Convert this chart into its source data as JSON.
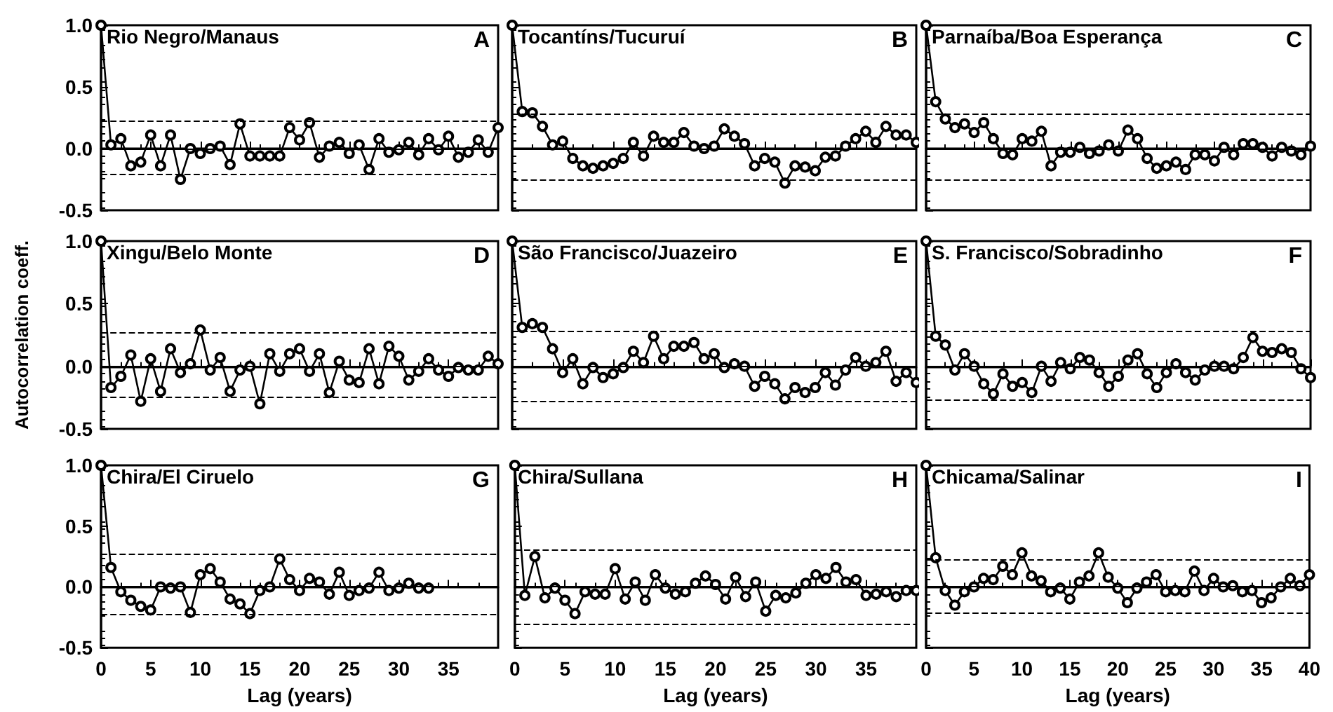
{
  "chart_data": [
    {
      "type": "line",
      "title": "Rio Negro/Manaus",
      "annotations": [
        "A"
      ],
      "tick_labels": "y",
      "color": "#000000",
      "marker": "circle",
      "xlim": [
        0,
        40
      ],
      "xticks": [
        {
          "value": 0,
          "label": null
        },
        {
          "value": 5,
          "label": null
        },
        {
          "value": 10,
          "label": null
        },
        {
          "value": 15,
          "label": null
        },
        {
          "value": 20,
          "label": null
        },
        {
          "value": 25,
          "label": null
        },
        {
          "value": 30,
          "label": null
        },
        {
          "value": 35,
          "label": null
        }
      ],
      "ylim": [
        -0.5,
        1.0
      ],
      "yticks": [
        {
          "value": -0.5,
          "label": "-0.5"
        },
        {
          "value": 0,
          "label": "0.0"
        },
        {
          "value": 0.5,
          "label": "0.5"
        },
        {
          "value": 1,
          "label": "1.0"
        }
      ],
      "ref_lines": [
        {
          "axis": "y",
          "value": 0,
          "line_style": "solid"
        },
        {
          "axis": "y",
          "value": 0.23,
          "line_style": "dashed"
        },
        {
          "axis": "y",
          "value": -0.21,
          "line_style": "dashed"
        }
      ],
      "x": [
        0,
        1,
        2,
        3,
        4,
        5,
        6,
        7,
        8,
        9,
        10,
        11,
        12,
        13,
        14,
        15,
        16,
        17,
        18,
        19,
        20,
        21,
        22,
        23,
        24,
        25,
        26,
        27,
        28,
        29,
        30,
        31,
        32,
        33,
        34,
        35,
        36,
        37,
        38,
        39,
        40
      ],
      "values": [
        1.0,
        0.03,
        0.08,
        -0.14,
        -0.11,
        0.11,
        -0.14,
        0.11,
        -0.25,
        0.0,
        -0.04,
        0.0,
        0.02,
        -0.13,
        0.2,
        -0.06,
        -0.06,
        -0.06,
        -0.06,
        0.17,
        0.07,
        0.21,
        -0.07,
        0.02,
        0.05,
        -0.04,
        0.03,
        -0.17,
        0.08,
        -0.03,
        -0.01,
        0.05,
        -0.05,
        0.08,
        -0.01,
        0.1,
        -0.07,
        -0.03,
        0.07,
        -0.03,
        0.17
      ]
    },
    {
      "type": "line",
      "title": "Tocantíns/Tucuruí",
      "annotations": [
        "B"
      ],
      "tick_labels": false,
      "color": "#000000",
      "marker": "circle",
      "xlim": [
        0,
        40
      ],
      "xticks": [
        {
          "value": 0,
          "label": null
        },
        {
          "value": 5,
          "label": null
        },
        {
          "value": 10,
          "label": null
        },
        {
          "value": 15,
          "label": null
        },
        {
          "value": 20,
          "label": null
        },
        {
          "value": 25,
          "label": null
        },
        {
          "value": 30,
          "label": null
        },
        {
          "value": 35,
          "label": null
        }
      ],
      "ylim": [
        -0.5,
        1.0
      ],
      "yticks": [
        {
          "value": -0.5,
          "label": null
        },
        {
          "value": 0,
          "label": null
        },
        {
          "value": 0.5,
          "label": null
        },
        {
          "value": 1,
          "label": null
        }
      ],
      "ref_lines": [
        {
          "axis": "y",
          "value": 0,
          "line_style": "solid"
        },
        {
          "axis": "y",
          "value": 0.28,
          "line_style": "dashed"
        },
        {
          "axis": "y",
          "value": -0.25,
          "line_style": "dashed"
        }
      ],
      "x": [
        0,
        1,
        2,
        3,
        4,
        5,
        6,
        7,
        8,
        9,
        10,
        11,
        12,
        13,
        14,
        15,
        16,
        17,
        18,
        19,
        20,
        21,
        22,
        23,
        24,
        25,
        26,
        27,
        28,
        29,
        30,
        31,
        32,
        33,
        34,
        35,
        36,
        37,
        38,
        39,
        40
      ],
      "values": [
        1.0,
        0.3,
        0.29,
        0.18,
        0.03,
        0.06,
        -0.08,
        -0.14,
        -0.16,
        -0.14,
        -0.12,
        -0.08,
        0.05,
        -0.06,
        0.1,
        0.05,
        0.05,
        0.13,
        0.02,
        0.0,
        0.02,
        0.16,
        0.1,
        0.04,
        -0.14,
        -0.08,
        -0.11,
        -0.28,
        -0.14,
        -0.15,
        -0.18,
        -0.07,
        -0.06,
        0.02,
        0.08,
        0.14,
        0.05,
        0.18,
        0.11,
        0.11,
        0.05
      ]
    },
    {
      "type": "line",
      "title": "Parnaíba/Boa Esperança",
      "annotations": [
        "C"
      ],
      "tick_labels": false,
      "color": "#000000",
      "marker": "circle",
      "xlim": [
        0,
        40
      ],
      "xticks": [
        {
          "value": 0,
          "label": null
        },
        {
          "value": 5,
          "label": null
        },
        {
          "value": 10,
          "label": null
        },
        {
          "value": 15,
          "label": null
        },
        {
          "value": 20,
          "label": null
        },
        {
          "value": 25,
          "label": null
        },
        {
          "value": 30,
          "label": null
        },
        {
          "value": 35,
          "label": null
        },
        {
          "value": 40,
          "label": null
        }
      ],
      "ylim": [
        -0.5,
        1.0
      ],
      "yticks": [
        {
          "value": -0.5,
          "label": null
        },
        {
          "value": 0,
          "label": null
        },
        {
          "value": 0.5,
          "label": null
        },
        {
          "value": 1,
          "label": null
        }
      ],
      "ref_lines": [
        {
          "axis": "y",
          "value": 0,
          "line_style": "solid"
        },
        {
          "axis": "y",
          "value": 0.28,
          "line_style": "dashed"
        },
        {
          "axis": "y",
          "value": -0.25,
          "line_style": "dashed"
        }
      ],
      "x": [
        0,
        1,
        2,
        3,
        4,
        5,
        6,
        7,
        8,
        9,
        10,
        11,
        12,
        13,
        14,
        15,
        16,
        17,
        18,
        19,
        20,
        21,
        22,
        23,
        24,
        25,
        26,
        27,
        28,
        29,
        30,
        31,
        32,
        33,
        34,
        35,
        36,
        37,
        38,
        39,
        40
      ],
      "values": [
        1.0,
        0.38,
        0.24,
        0.17,
        0.2,
        0.13,
        0.21,
        0.08,
        -0.04,
        -0.05,
        0.08,
        0.06,
        0.14,
        -0.14,
        -0.03,
        -0.03,
        0.01,
        -0.04,
        -0.02,
        0.03,
        -0.02,
        0.15,
        0.08,
        -0.08,
        -0.16,
        -0.14,
        -0.11,
        -0.17,
        -0.05,
        -0.05,
        -0.1,
        0.01,
        -0.05,
        0.04,
        0.04,
        0.01,
        -0.06,
        0.01,
        -0.02,
        -0.05,
        0.02
      ]
    },
    {
      "type": "line",
      "title": "Xingu/Belo Monte",
      "ylabel": "Autocorrelation coeff.",
      "annotations": [
        "D"
      ],
      "tick_labels": "y",
      "color": "#000000",
      "marker": "circle",
      "xlim": [
        0,
        40
      ],
      "xticks": [
        {
          "value": 0,
          "label": null
        },
        {
          "value": 5,
          "label": null
        },
        {
          "value": 10,
          "label": null
        },
        {
          "value": 15,
          "label": null
        },
        {
          "value": 20,
          "label": null
        },
        {
          "value": 25,
          "label": null
        },
        {
          "value": 30,
          "label": null
        },
        {
          "value": 35,
          "label": null
        }
      ],
      "ylim": [
        -0.5,
        1.0
      ],
      "yticks": [
        {
          "value": -0.5,
          "label": "-0.5"
        },
        {
          "value": 0,
          "label": "0.0"
        },
        {
          "value": 0.5,
          "label": "0.5"
        },
        {
          "value": 1,
          "label": "1.0"
        }
      ],
      "ref_lines": [
        {
          "axis": "y",
          "value": 0,
          "line_style": "solid"
        },
        {
          "axis": "y",
          "value": 0.27,
          "line_style": "dashed"
        },
        {
          "axis": "y",
          "value": -0.25,
          "line_style": "dashed"
        }
      ],
      "x": [
        0,
        1,
        2,
        3,
        4,
        5,
        6,
        7,
        8,
        9,
        10,
        11,
        12,
        13,
        14,
        15,
        16,
        17,
        18,
        19,
        20,
        21,
        22,
        23,
        24,
        25,
        26,
        27,
        28,
        29,
        30,
        31,
        32,
        33,
        34,
        35,
        36,
        37,
        38,
        39,
        40
      ],
      "values": [
        1.0,
        -0.17,
        -0.08,
        0.09,
        -0.28,
        0.06,
        -0.2,
        0.14,
        -0.05,
        0.02,
        0.29,
        -0.03,
        0.07,
        -0.2,
        -0.03,
        0.0,
        -0.3,
        0.1,
        -0.04,
        0.1,
        0.14,
        -0.04,
        0.1,
        -0.21,
        0.04,
        -0.11,
        -0.13,
        0.14,
        -0.14,
        0.16,
        0.08,
        -0.11,
        -0.04,
        0.06,
        -0.03,
        -0.08,
        -0.01,
        -0.03,
        -0.03,
        0.08,
        0.02
      ]
    },
    {
      "type": "line",
      "title": "São Francisco/Juazeiro",
      "annotations": [
        "E"
      ],
      "tick_labels": false,
      "color": "#000000",
      "marker": "circle",
      "xlim": [
        0,
        40
      ],
      "xticks": [
        {
          "value": 0,
          "label": null
        },
        {
          "value": 5,
          "label": null
        },
        {
          "value": 10,
          "label": null
        },
        {
          "value": 15,
          "label": null
        },
        {
          "value": 20,
          "label": null
        },
        {
          "value": 25,
          "label": null
        },
        {
          "value": 30,
          "label": null
        },
        {
          "value": 35,
          "label": null
        }
      ],
      "ylim": [
        -0.5,
        1.0
      ],
      "yticks": [
        {
          "value": -0.5,
          "label": null
        },
        {
          "value": 0,
          "label": null
        },
        {
          "value": 0.5,
          "label": null
        },
        {
          "value": 1,
          "label": null
        }
      ],
      "ref_lines": [
        {
          "axis": "y",
          "value": 0,
          "line_style": "solid"
        },
        {
          "axis": "y",
          "value": 0.28,
          "line_style": "dashed"
        },
        {
          "axis": "y",
          "value": -0.28,
          "line_style": "dashed"
        }
      ],
      "x": [
        0,
        1,
        2,
        3,
        4,
        5,
        6,
        7,
        8,
        9,
        10,
        11,
        12,
        13,
        14,
        15,
        16,
        17,
        18,
        19,
        20,
        21,
        22,
        23,
        24,
        25,
        26,
        27,
        28,
        29,
        30,
        31,
        32,
        33,
        34,
        35,
        36,
        37,
        38,
        39,
        40
      ],
      "values": [
        1.0,
        0.31,
        0.34,
        0.31,
        0.14,
        -0.05,
        0.06,
        -0.14,
        -0.01,
        -0.09,
        -0.06,
        -0.01,
        0.12,
        0.03,
        0.24,
        0.06,
        0.16,
        0.16,
        0.19,
        0.06,
        0.1,
        -0.01,
        0.02,
        0.0,
        -0.16,
        -0.08,
        -0.14,
        -0.26,
        -0.17,
        -0.21,
        -0.17,
        -0.05,
        -0.15,
        -0.03,
        0.07,
        0.0,
        0.03,
        0.12,
        -0.12,
        -0.05,
        -0.13
      ]
    },
    {
      "type": "line",
      "title": "S. Francisco/Sobradinho",
      "annotations": [
        "F"
      ],
      "tick_labels": false,
      "color": "#000000",
      "marker": "circle",
      "xlim": [
        0,
        40
      ],
      "xticks": [
        {
          "value": 0,
          "label": null
        },
        {
          "value": 5,
          "label": null
        },
        {
          "value": 10,
          "label": null
        },
        {
          "value": 15,
          "label": null
        },
        {
          "value": 20,
          "label": null
        },
        {
          "value": 25,
          "label": null
        },
        {
          "value": 30,
          "label": null
        },
        {
          "value": 35,
          "label": null
        },
        {
          "value": 40,
          "label": null
        }
      ],
      "ylim": [
        -0.5,
        1.0
      ],
      "yticks": [
        {
          "value": -0.5,
          "label": null
        },
        {
          "value": 0,
          "label": null
        },
        {
          "value": 0.5,
          "label": null
        },
        {
          "value": 1,
          "label": null
        }
      ],
      "ref_lines": [
        {
          "axis": "y",
          "value": 0,
          "line_style": "solid"
        },
        {
          "axis": "y",
          "value": 0.28,
          "line_style": "dashed"
        },
        {
          "axis": "y",
          "value": -0.27,
          "line_style": "dashed"
        }
      ],
      "x": [
        0,
        1,
        2,
        3,
        4,
        5,
        6,
        7,
        8,
        9,
        10,
        11,
        12,
        13,
        14,
        15,
        16,
        17,
        18,
        19,
        20,
        21,
        22,
        23,
        24,
        25,
        26,
        27,
        28,
        29,
        30,
        31,
        32,
        33,
        34,
        35,
        36,
        37,
        38,
        39,
        40
      ],
      "values": [
        1.0,
        0.24,
        0.17,
        -0.03,
        0.1,
        0.0,
        -0.14,
        -0.22,
        -0.06,
        -0.16,
        -0.13,
        -0.21,
        0.0,
        -0.12,
        0.03,
        -0.02,
        0.07,
        0.05,
        -0.05,
        -0.16,
        -0.08,
        0.05,
        0.1,
        -0.06,
        -0.17,
        -0.05,
        0.02,
        -0.05,
        -0.11,
        -0.03,
        0.0,
        0.0,
        -0.02,
        0.07,
        0.23,
        0.12,
        0.11,
        0.14,
        0.11,
        -0.02,
        -0.09
      ]
    },
    {
      "type": "line",
      "title": "Chira/El Ciruelo",
      "xlabel": "Lag (years)",
      "annotations": [
        "G"
      ],
      "color": "#000000",
      "marker": "circle",
      "xlim": [
        0,
        40
      ],
      "xticks": [
        0,
        5,
        10,
        15,
        20,
        25,
        30,
        35
      ],
      "ylim": [
        -0.5,
        1.0
      ],
      "yticks": [
        {
          "value": -0.5,
          "label": "-0.5"
        },
        {
          "value": 0,
          "label": "0.0"
        },
        {
          "value": 0.5,
          "label": "0.5"
        },
        {
          "value": 1,
          "label": "1.0"
        }
      ],
      "ref_lines": [
        {
          "axis": "y",
          "value": 0,
          "line_style": "solid"
        },
        {
          "axis": "y",
          "value": 0.27,
          "line_style": "dashed"
        },
        {
          "axis": "y",
          "value": -0.22,
          "line_style": "dashed"
        }
      ],
      "x": [
        0,
        1,
        2,
        3,
        4,
        5,
        6,
        7,
        8,
        9,
        10,
        11,
        12,
        13,
        14,
        15,
        16,
        17,
        18,
        19,
        20,
        21,
        22,
        23,
        24,
        25,
        26,
        27,
        28,
        29,
        30,
        31,
        32,
        33
      ],
      "values": [
        1.0,
        0.16,
        -0.04,
        -0.11,
        -0.16,
        -0.19,
        0.0,
        -0.01,
        0.0,
        -0.21,
        0.1,
        0.15,
        0.04,
        -0.1,
        -0.14,
        -0.22,
        -0.03,
        0.0,
        0.23,
        0.06,
        -0.03,
        0.07,
        0.04,
        -0.06,
        0.12,
        -0.07,
        -0.03,
        -0.01,
        0.12,
        -0.03,
        -0.01,
        0.03,
        -0.01,
        -0.01
      ]
    },
    {
      "type": "line",
      "title": "Chira/Sullana",
      "xlabel": "Lag (years)",
      "annotations": [
        "H"
      ],
      "tick_labels": "x",
      "color": "#000000",
      "marker": "circle",
      "xlim": [
        0,
        40
      ],
      "xticks": [
        0,
        5,
        10,
        15,
        20,
        25,
        30,
        35
      ],
      "ylim": [
        -0.5,
        1.0
      ],
      "yticks": [
        {
          "value": -0.5,
          "label": null
        },
        {
          "value": 0,
          "label": null
        },
        {
          "value": 0.5,
          "label": null
        },
        {
          "value": 1,
          "label": null
        }
      ],
      "ref_lines": [
        {
          "axis": "y",
          "value": 0,
          "line_style": "solid"
        },
        {
          "axis": "y",
          "value": 0.3,
          "line_style": "dashed"
        },
        {
          "axis": "y",
          "value": -0.3,
          "line_style": "dashed"
        }
      ],
      "x": [
        0,
        1,
        2,
        3,
        4,
        5,
        6,
        7,
        8,
        9,
        10,
        11,
        12,
        13,
        14,
        15,
        16,
        17,
        18,
        19,
        20,
        21,
        22,
        23,
        24,
        25,
        26,
        27,
        28,
        29,
        30,
        31,
        32,
        33,
        34,
        35,
        36,
        37,
        38,
        39,
        40
      ],
      "values": [
        1.0,
        -0.07,
        0.25,
        -0.09,
        -0.01,
        -0.11,
        -0.22,
        -0.04,
        -0.06,
        -0.06,
        0.15,
        -0.1,
        0.04,
        -0.11,
        0.1,
        -0.01,
        -0.06,
        -0.04,
        0.03,
        0.09,
        0.02,
        -0.1,
        0.08,
        -0.08,
        0.04,
        -0.2,
        -0.07,
        -0.09,
        -0.05,
        0.03,
        0.1,
        0.07,
        0.16,
        0.04,
        0.06,
        -0.07,
        -0.06,
        -0.04,
        -0.08,
        -0.03,
        -0.03
      ]
    },
    {
      "type": "line",
      "title": "Chicama/Salinar",
      "xlabel": "Lag (years)",
      "annotations": [
        "I"
      ],
      "tick_labels": "x",
      "color": "#000000",
      "marker": "circle",
      "xlim": [
        0,
        40
      ],
      "xticks": [
        0,
        5,
        10,
        15,
        20,
        25,
        30,
        35,
        40
      ],
      "ylim": [
        -0.5,
        1.0
      ],
      "yticks": [
        {
          "value": -0.5,
          "label": null
        },
        {
          "value": 0,
          "label": null
        },
        {
          "value": 0.5,
          "label": null
        },
        {
          "value": 1,
          "label": null
        }
      ],
      "ref_lines": [
        {
          "axis": "y",
          "value": 0,
          "line_style": "solid"
        },
        {
          "axis": "y",
          "value": 0.22,
          "line_style": "dashed"
        },
        {
          "axis": "y",
          "value": -0.21,
          "line_style": "dashed"
        }
      ],
      "x": [
        0,
        1,
        2,
        3,
        4,
        5,
        6,
        7,
        8,
        9,
        10,
        11,
        12,
        13,
        14,
        15,
        16,
        17,
        18,
        19,
        20,
        21,
        22,
        23,
        24,
        25,
        26,
        27,
        28,
        29,
        30,
        31,
        32,
        33,
        34,
        35,
        36,
        37,
        38,
        39,
        40
      ],
      "values": [
        1.0,
        0.24,
        -0.03,
        -0.15,
        -0.04,
        0.0,
        0.07,
        0.06,
        0.17,
        0.1,
        0.28,
        0.09,
        0.05,
        -0.04,
        -0.01,
        -0.1,
        0.04,
        0.09,
        0.28,
        0.08,
        -0.01,
        -0.13,
        -0.01,
        0.04,
        0.1,
        -0.04,
        -0.03,
        -0.04,
        0.13,
        -0.03,
        0.07,
        0.0,
        0.01,
        -0.04,
        -0.03,
        -0.13,
        -0.09,
        0.0,
        0.07,
        0.01,
        0.1
      ]
    }
  ]
}
